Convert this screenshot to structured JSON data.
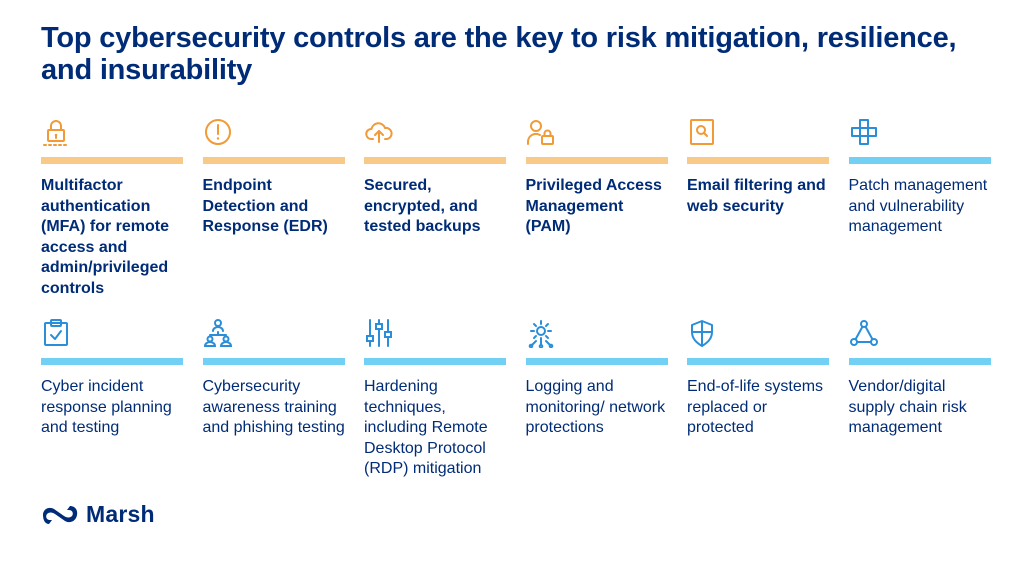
{
  "title": "Top cybersecurity controls are the key to risk mitigation, resilience, and insurability",
  "colors": {
    "navy": "#002c77",
    "orange_icon": "#f29a36",
    "orange_bar": "#f9c987",
    "blue_icon": "#2a8fd8",
    "blue_bar": "#72d0f4"
  },
  "row1": [
    {
      "icon": "padlock-icon",
      "label": "Multifactor authentication (MFA) for remote access and admin/privileged controls"
    },
    {
      "icon": "alert-circle-icon",
      "label": "Endpoint Detection and Response (EDR)"
    },
    {
      "icon": "cloud-upload-icon",
      "label": "Secured, encrypted, and tested backups"
    },
    {
      "icon": "user-lock-icon",
      "label": "Privileged Access Management (PAM)"
    },
    {
      "icon": "mail-search-icon",
      "label": "Email filtering and web security"
    },
    {
      "icon": "patch-cross-icon",
      "label": "Patch management and vulnerability management"
    }
  ],
  "row2": [
    {
      "icon": "clipboard-check-icon",
      "label": "Cyber incident response planning and testing"
    },
    {
      "icon": "people-network-icon",
      "label": "Cybersecurity awareness training and phishing testing"
    },
    {
      "icon": "sliders-icon",
      "label": "Hardening techniques, including Remote Desktop Protocol (RDP) mitigation"
    },
    {
      "icon": "gear-network-icon",
      "label": "Logging and monitoring/ network protections"
    },
    {
      "icon": "shield-icon",
      "label": "End-of-life systems replaced or protected"
    },
    {
      "icon": "vendor-network-icon",
      "label": "Vendor/digital supply chain risk management"
    }
  ],
  "logo": {
    "text": "Marsh",
    "icon": "marsh-logo-icon"
  }
}
